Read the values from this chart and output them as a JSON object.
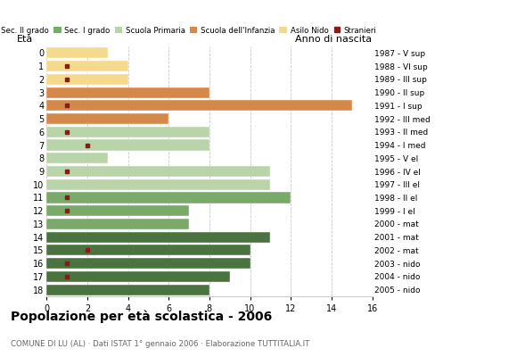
{
  "ages": [
    0,
    1,
    2,
    3,
    4,
    5,
    6,
    7,
    8,
    9,
    10,
    11,
    12,
    13,
    14,
    15,
    16,
    17,
    18
  ],
  "years": [
    "2005 - nido",
    "2004 - nido",
    "2003 - nido",
    "2002 - mat",
    "2001 - mat",
    "2000 - mat",
    "1999 - I el",
    "1998 - II el",
    "1997 - III el",
    "1996 - IV el",
    "1995 - V el",
    "1994 - I med",
    "1993 - II med",
    "1992 - III med",
    "1991 - I sup",
    "1990 - II sup",
    "1989 - III sup",
    "1988 - VI sup",
    "1987 - V sup"
  ],
  "bar_values": [
    3,
    4,
    4,
    8,
    15,
    6,
    8,
    8,
    3,
    11,
    11,
    12,
    7,
    7,
    11,
    10,
    10,
    9,
    8
  ],
  "foreigners": [
    0,
    1,
    1,
    0,
    1,
    0,
    1,
    2,
    0,
    1,
    0,
    1,
    1,
    0,
    0,
    2,
    1,
    1,
    0
  ],
  "color_map": [
    "#f5d98c",
    "#f5d98c",
    "#f5d98c",
    "#d4894a",
    "#d4894a",
    "#d4894a",
    "#b8d4a8",
    "#b8d4a8",
    "#b8d4a8",
    "#b8d4a8",
    "#b8d4a8",
    "#7aaa6a",
    "#7aaa6a",
    "#7aaa6a",
    "#4a7340",
    "#4a7340",
    "#4a7340",
    "#4a7340",
    "#4a7340"
  ],
  "foreigner_color": "#8b1a1a",
  "title": "Popolazione per età scolastica - 2006",
  "subtitle": "COMUNE DI LU (AL) · Dati ISTAT 1° gennaio 2006 · Elaborazione TUTTITALIA.IT",
  "ylabel_left": "Età",
  "ylabel_right": "Anno di nascita",
  "xlim": [
    0,
    16
  ],
  "xticks": [
    0,
    2,
    4,
    6,
    8,
    10,
    12,
    14,
    16
  ],
  "legend_labels": [
    "Sec. II grado",
    "Sec. I grado",
    "Scuola Primaria",
    "Scuola dell'Infanzia",
    "Asilo Nido",
    "Stranieri"
  ],
  "legend_colors": [
    "#4a7340",
    "#7aaa6a",
    "#b8d4a8",
    "#d4894a",
    "#f5d98c",
    "#8b1a1a"
  ],
  "background_color": "#ffffff",
  "grid_color": "#bbbbbb"
}
